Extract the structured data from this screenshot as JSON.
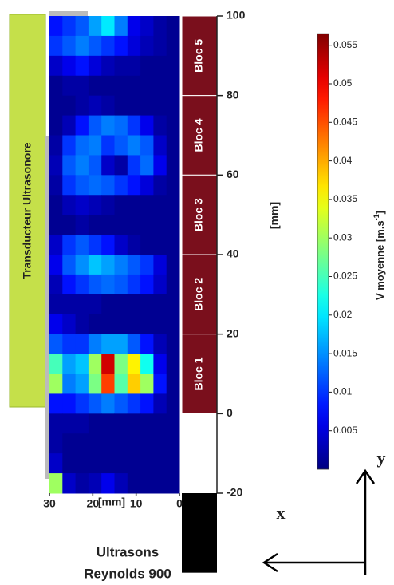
{
  "chart_data": {
    "type": "heatmap",
    "transducer_label": "Transducteur Ultrasonore",
    "xlabel": "[mm]",
    "ylabel": "[mm]",
    "caption_line1": "Ultrasons",
    "caption_line2": "Reynolds 900",
    "xlim": [
      30,
      0
    ],
    "xticks": [
      30,
      20,
      10,
      0
    ],
    "ylim": [
      -20,
      100
    ],
    "yticks": [
      -20,
      0,
      20,
      40,
      60,
      80,
      100
    ],
    "blocks": [
      {
        "label": "Bloc 5",
        "range": [
          80,
          100
        ]
      },
      {
        "label": "Bloc 4",
        "range": [
          60,
          80
        ]
      },
      {
        "label": "Bloc 3",
        "range": [
          40,
          60
        ]
      },
      {
        "label": "Bloc 2",
        "range": [
          20,
          40
        ]
      },
      {
        "label": "Bloc 1",
        "range": [
          0,
          20
        ]
      }
    ],
    "colormap": "jet",
    "clim": [
      0,
      0.0565
    ],
    "cticks": [
      0.005,
      0.01,
      0.015,
      0.02,
      0.025,
      0.03,
      0.035,
      0.04,
      0.045,
      0.05,
      0.055
    ],
    "colorbar_label": "V moyenne [m.s",
    "colorbar_label_sup": "-1",
    "colorbar_label_end": "]",
    "axis_x_label": "x",
    "axis_y_label": "y",
    "xbins": [
      30,
      27,
      24,
      21,
      18,
      15,
      12,
      9,
      6,
      3,
      0
    ],
    "ybins": [
      100,
      95,
      90,
      85,
      80,
      75,
      70,
      65,
      60,
      55,
      50,
      45,
      40,
      35,
      30,
      25,
      20,
      15,
      10,
      5,
      0,
      -5,
      -10,
      -15,
      -20
    ],
    "z": [
      [
        0.008,
        0.01,
        0.012,
        0.016,
        0.02,
        0.014,
        0.006,
        0.004,
        0.002,
        0.001
      ],
      [
        0.01,
        0.012,
        0.014,
        0.012,
        0.01,
        0.008,
        0.005,
        0.003,
        0.002,
        0.001
      ],
      [
        0.004,
        0.006,
        0.008,
        0.005,
        0.003,
        0.002,
        0.002,
        0.001,
        0.001,
        0.001
      ],
      [
        0.001,
        0.002,
        0.002,
        0.001,
        0.001,
        0.001,
        0.001,
        0.001,
        0.001,
        0.001
      ],
      [
        0.001,
        0.001,
        0.002,
        0.003,
        0.002,
        0.001,
        0.001,
        0.001,
        0.001,
        0.001
      ],
      [
        0.001,
        0.003,
        0.008,
        0.012,
        0.014,
        0.013,
        0.01,
        0.006,
        0.002,
        0.001
      ],
      [
        0.002,
        0.01,
        0.013,
        0.014,
        0.01,
        0.012,
        0.014,
        0.012,
        0.004,
        0.001
      ],
      [
        0.003,
        0.012,
        0.014,
        0.012,
        0.004,
        0.002,
        0.01,
        0.013,
        0.006,
        0.001
      ],
      [
        0.002,
        0.01,
        0.012,
        0.013,
        0.012,
        0.01,
        0.008,
        0.005,
        0.002,
        0.001
      ],
      [
        0.001,
        0.003,
        0.004,
        0.003,
        0.002,
        0.001,
        0.001,
        0.001,
        0.001,
        0.001
      ],
      [
        0.001,
        0.001,
        0.002,
        0.001,
        0.001,
        0.001,
        0.001,
        0.001,
        0.001,
        0.001
      ],
      [
        0.004,
        0.01,
        0.012,
        0.01,
        0.008,
        0.004,
        0.002,
        0.001,
        0.001,
        0.001
      ],
      [
        0.006,
        0.012,
        0.015,
        0.018,
        0.016,
        0.014,
        0.012,
        0.01,
        0.005,
        0.001
      ],
      [
        0.003,
        0.008,
        0.01,
        0.012,
        0.013,
        0.012,
        0.01,
        0.008,
        0.004,
        0.001
      ],
      [
        0.002,
        0.002,
        0.002,
        0.002,
        0.001,
        0.001,
        0.001,
        0.001,
        0.001,
        0.001
      ],
      [
        0.006,
        0.004,
        0.002,
        0.001,
        0.001,
        0.001,
        0.001,
        0.001,
        0.001,
        0.001
      ],
      [
        0.012,
        0.01,
        0.01,
        0.014,
        0.016,
        0.016,
        0.012,
        0.008,
        0.003,
        0.001
      ],
      [
        0.025,
        0.016,
        0.018,
        0.03,
        0.052,
        0.028,
        0.036,
        0.022,
        0.006,
        0.001
      ],
      [
        0.03,
        0.014,
        0.016,
        0.028,
        0.046,
        0.026,
        0.038,
        0.03,
        0.008,
        0.001
      ],
      [
        0.008,
        0.008,
        0.01,
        0.012,
        0.014,
        0.012,
        0.01,
        0.008,
        0.003,
        0.001
      ],
      [
        0.002,
        0.002,
        0.002,
        0.001,
        0.001,
        0.001,
        0.001,
        0.001,
        0.001,
        0.001
      ],
      [
        0.002,
        0.001,
        0.001,
        0.001,
        0.001,
        0.001,
        0.001,
        0.001,
        0.001,
        0.001
      ],
      [
        0.004,
        0.001,
        0.001,
        0.001,
        0.001,
        0.001,
        0.001,
        0.001,
        0.001,
        0.001
      ],
      [
        0.03,
        0.004,
        0.002,
        0.003,
        0.006,
        0.003,
        0.001,
        0.001,
        0.001,
        0.001
      ]
    ]
  }
}
